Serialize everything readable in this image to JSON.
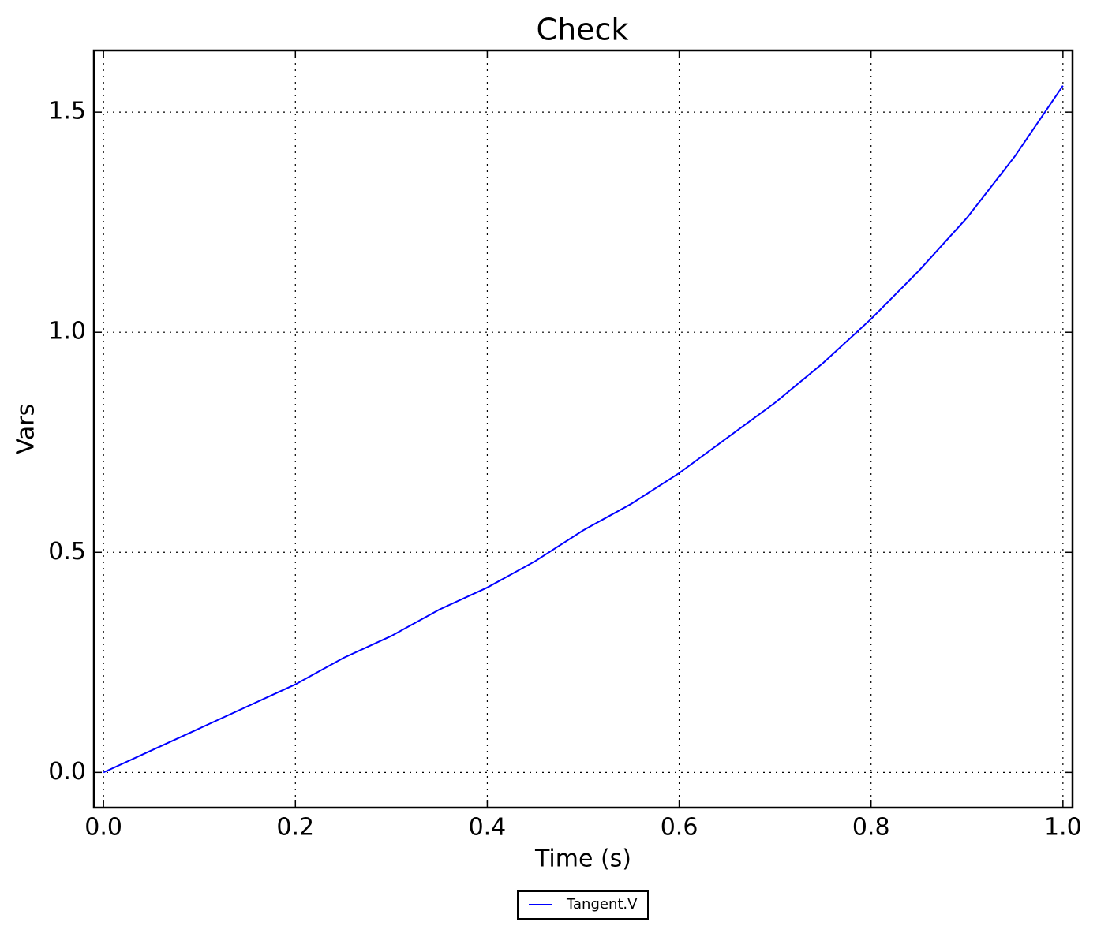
{
  "chart_data": {
    "type": "line",
    "title": "Check",
    "xlabel": "Time (s)",
    "ylabel": "Vars",
    "x": [
      0,
      0.05,
      0.1,
      0.15,
      0.2,
      0.25,
      0.3,
      0.35,
      0.4,
      0.45,
      0.5,
      0.55,
      0.6,
      0.65,
      0.7,
      0.75,
      0.8,
      0.85,
      0.9,
      0.95,
      1.0
    ],
    "series": [
      {
        "name": "Tangent.V",
        "color": "#0000ff",
        "values": [
          0,
          0.05,
          0.1,
          0.15,
          0.2,
          0.26,
          0.31,
          0.37,
          0.42,
          0.48,
          0.55,
          0.61,
          0.68,
          0.76,
          0.84,
          0.93,
          1.03,
          1.14,
          1.26,
          1.4,
          1.56
        ]
      }
    ],
    "xlim": [
      -0.01,
      1.01
    ],
    "ylim": [
      -0.08,
      1.64
    ],
    "xticks": [
      {
        "value": 0,
        "label": "0.0"
      },
      0.2,
      0.4,
      0.6,
      0.8,
      {
        "value": 1,
        "label": "1.0"
      }
    ],
    "yticks": [
      {
        "value": 0,
        "label": "0.0"
      },
      0.5,
      {
        "value": 1,
        "label": "1.0"
      },
      1.5
    ],
    "grid": true,
    "legend": "below"
  }
}
